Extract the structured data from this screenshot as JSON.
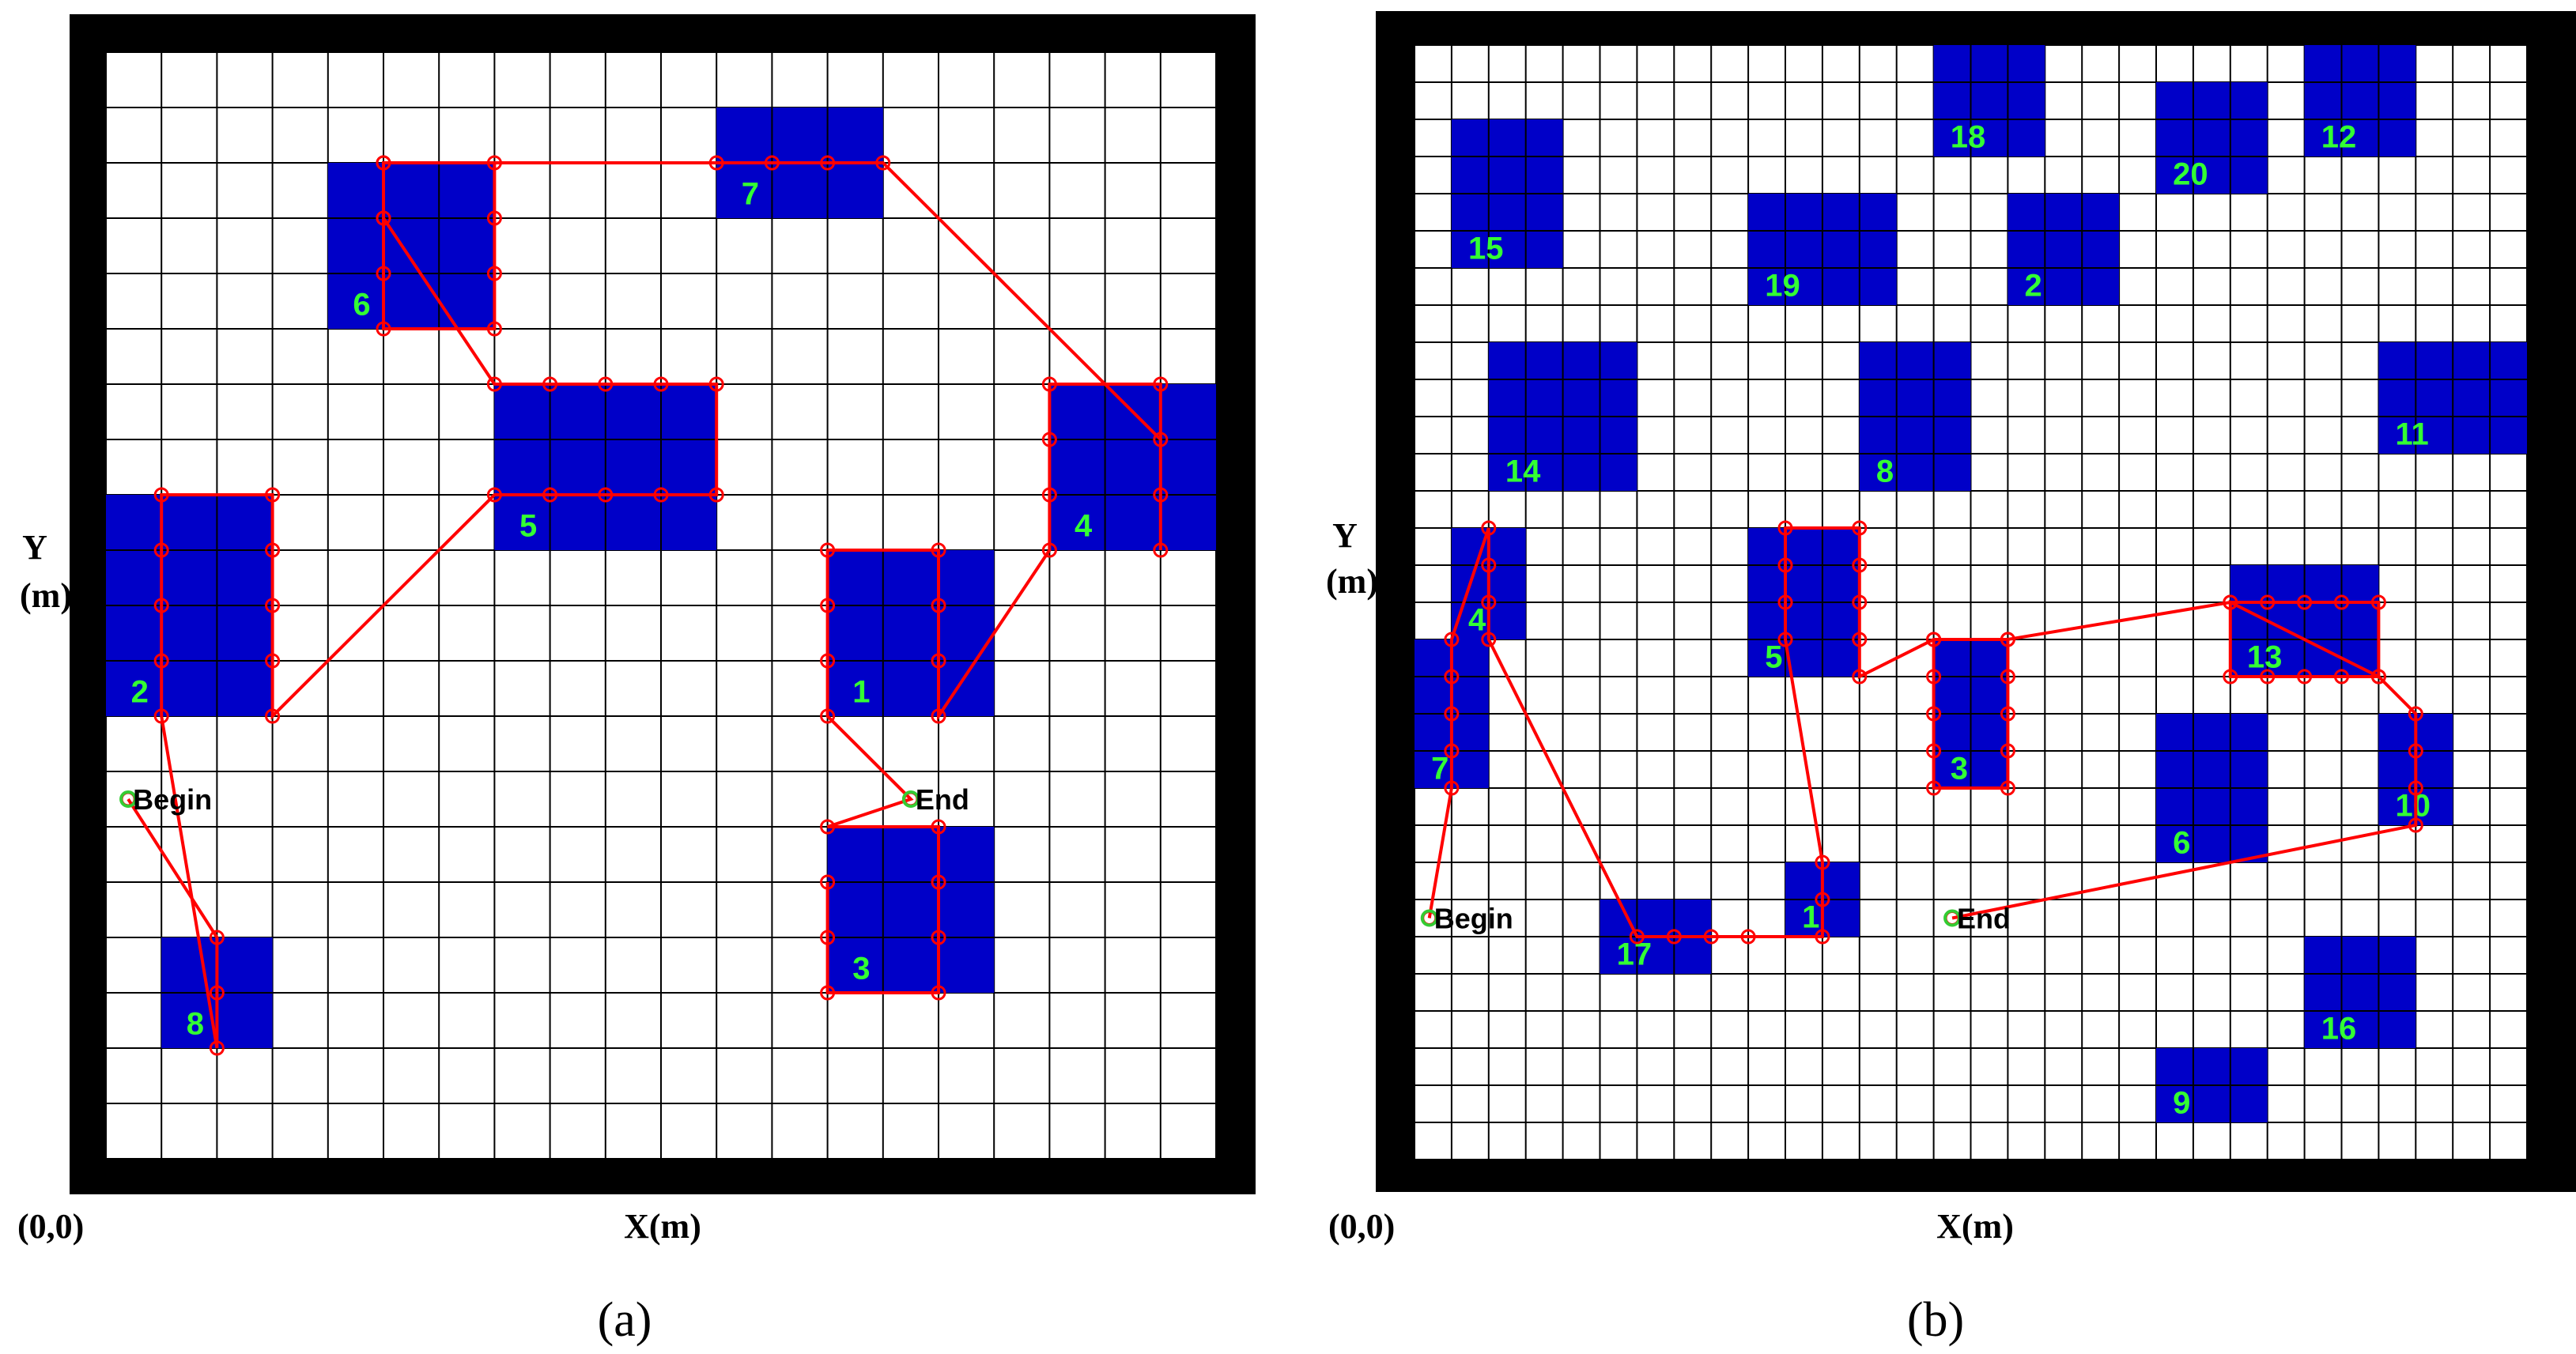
{
  "panels": [
    {
      "id": "a",
      "caption": "(a)",
      "x_label": "X(m)",
      "y_label_line1": "Y",
      "y_label_line2": "(m)",
      "origin_label": "(0,0)",
      "grid_cols": 20,
      "grid_rows": 20,
      "obstacles": [
        {
          "label": "1",
          "x": 13,
          "y": 8,
          "w": 3,
          "h": 3
        },
        {
          "label": "2",
          "x": 0,
          "y": 8,
          "w": 3,
          "h": 4
        },
        {
          "label": "3",
          "x": 13,
          "y": 3,
          "w": 3,
          "h": 3
        },
        {
          "label": "4",
          "x": 17,
          "y": 11,
          "w": 3,
          "h": 3
        },
        {
          "label": "5",
          "x": 7,
          "y": 11,
          "w": 4,
          "h": 3
        },
        {
          "label": "6",
          "x": 4,
          "y": 15,
          "w": 3,
          "h": 3
        },
        {
          "label": "7",
          "x": 11,
          "y": 17,
          "w": 3,
          "h": 2
        },
        {
          "label": "8",
          "x": 1,
          "y": 2,
          "w": 2,
          "h": 2
        }
      ],
      "markers": [
        {
          "label": "Begin",
          "x": 0.4,
          "y": 6.5
        },
        {
          "label": "End",
          "x": 14.5,
          "y": 6.5
        }
      ],
      "path": [
        [
          0.4,
          6.5
        ],
        [
          2,
          4
        ],
        [
          2,
          3
        ],
        [
          2,
          2
        ],
        [
          1,
          8
        ],
        [
          1,
          9
        ],
        [
          1,
          10
        ],
        [
          1,
          11
        ],
        [
          1,
          12
        ],
        [
          3,
          12
        ],
        [
          3,
          11
        ],
        [
          3,
          10
        ],
        [
          3,
          9
        ],
        [
          3,
          8
        ],
        [
          7,
          12
        ],
        [
          8,
          12
        ],
        [
          9,
          12
        ],
        [
          10,
          12
        ],
        [
          11,
          12
        ],
        [
          11,
          14
        ],
        [
          10,
          14
        ],
        [
          9,
          14
        ],
        [
          8,
          14
        ],
        [
          7,
          14
        ],
        [
          5,
          17
        ],
        [
          5,
          18
        ],
        [
          7,
          18
        ],
        [
          7,
          17
        ],
        [
          7,
          16
        ],
        [
          7,
          15
        ],
        [
          5,
          15
        ],
        [
          5,
          16
        ],
        [
          5,
          17
        ],
        [
          5,
          18
        ],
        [
          11,
          18
        ],
        [
          12,
          18
        ],
        [
          13,
          18
        ],
        [
          14,
          18
        ],
        [
          19,
          13
        ],
        [
          19,
          12
        ],
        [
          19,
          11
        ],
        [
          19,
          14
        ],
        [
          17,
          14
        ],
        [
          17,
          13
        ],
        [
          17,
          12
        ],
        [
          17,
          11
        ],
        [
          15,
          8
        ],
        [
          15,
          9
        ],
        [
          15,
          10
        ],
        [
          15,
          11
        ],
        [
          13,
          11
        ],
        [
          13,
          10
        ],
        [
          13,
          9
        ],
        [
          13,
          8
        ],
        [
          14.5,
          6.5
        ],
        [
          13,
          6
        ],
        [
          15,
          6
        ],
        [
          15,
          5
        ],
        [
          15,
          4
        ],
        [
          15,
          3
        ],
        [
          13,
          3
        ],
        [
          13,
          4
        ],
        [
          13,
          5
        ]
      ]
    },
    {
      "id": "b",
      "caption": "(b)",
      "x_label": "X(m)",
      "y_label_line1": "Y",
      "y_label_line2": "(m)",
      "origin_label": "(0,0)",
      "grid_cols": 30,
      "grid_rows": 30,
      "obstacles": [
        {
          "label": "1",
          "x": 10,
          "y": 6,
          "w": 2,
          "h": 2
        },
        {
          "label": "2",
          "x": 16,
          "y": 23,
          "w": 3,
          "h": 3
        },
        {
          "label": "3",
          "x": 14,
          "y": 10,
          "w": 2,
          "h": 4
        },
        {
          "label": "4",
          "x": 1,
          "y": 14,
          "w": 2,
          "h": 3
        },
        {
          "label": "5",
          "x": 9,
          "y": 13,
          "w": 3,
          "h": 4
        },
        {
          "label": "6",
          "x": 20,
          "y": 8,
          "w": 3,
          "h": 4
        },
        {
          "label": "7",
          "x": 0,
          "y": 10,
          "w": 2,
          "h": 4
        },
        {
          "label": "8",
          "x": 12,
          "y": 18,
          "w": 3,
          "h": 4
        },
        {
          "label": "9",
          "x": 20,
          "y": 1,
          "w": 3,
          "h": 2
        },
        {
          "label": "10",
          "x": 26,
          "y": 9,
          "w": 2,
          "h": 3
        },
        {
          "label": "11",
          "x": 26,
          "y": 19,
          "w": 4,
          "h": 3
        },
        {
          "label": "12",
          "x": 24,
          "y": 27,
          "w": 3,
          "h": 3
        },
        {
          "label": "13",
          "x": 22,
          "y": 13,
          "w": 4,
          "h": 3
        },
        {
          "label": "14",
          "x": 2,
          "y": 18,
          "w": 4,
          "h": 4
        },
        {
          "label": "15",
          "x": 1,
          "y": 24,
          "w": 3,
          "h": 4
        },
        {
          "label": "16",
          "x": 24,
          "y": 3,
          "w": 3,
          "h": 3
        },
        {
          "label": "17",
          "x": 5,
          "y": 5,
          "w": 3,
          "h": 2
        },
        {
          "label": "18",
          "x": 14,
          "y": 27,
          "w": 3,
          "h": 3
        },
        {
          "label": "19",
          "x": 9,
          "y": 23,
          "w": 4,
          "h": 3
        },
        {
          "label": "20",
          "x": 20,
          "y": 26,
          "w": 3,
          "h": 3
        }
      ],
      "markers": [
        {
          "label": "Begin",
          "x": 0.4,
          "y": 6.5
        },
        {
          "label": "End",
          "x": 14.5,
          "y": 6.5
        }
      ],
      "path": [
        [
          0.4,
          6.5
        ],
        [
          1,
          10
        ],
        [
          1,
          11
        ],
        [
          1,
          12
        ],
        [
          1,
          13
        ],
        [
          1,
          14
        ],
        [
          2,
          17
        ],
        [
          2,
          16
        ],
        [
          2,
          15
        ],
        [
          2,
          14
        ],
        [
          6,
          6
        ],
        [
          7,
          6
        ],
        [
          8,
          6
        ],
        [
          9,
          6
        ],
        [
          11,
          6
        ],
        [
          11,
          7
        ],
        [
          11,
          8
        ],
        [
          10,
          14
        ],
        [
          10,
          15
        ],
        [
          10,
          16
        ],
        [
          10,
          17
        ],
        [
          12,
          17
        ],
        [
          12,
          16
        ],
        [
          12,
          15
        ],
        [
          12,
          14
        ],
        [
          12,
          13
        ],
        [
          14,
          14
        ],
        [
          16,
          14
        ],
        [
          22,
          15
        ],
        [
          23,
          15
        ],
        [
          24,
          15
        ],
        [
          25,
          15
        ],
        [
          26,
          15
        ],
        [
          26,
          13
        ],
        [
          25,
          13
        ],
        [
          24,
          13
        ],
        [
          23,
          13
        ],
        [
          22,
          13
        ],
        [
          22,
          15
        ],
        [
          26,
          13
        ],
        [
          27,
          12
        ],
        [
          27,
          11
        ],
        [
          27,
          10
        ],
        [
          27,
          9
        ],
        [
          14.5,
          6.5
        ]
      ],
      "path_extra": [
        [
          [
            14,
            14
          ],
          [
            14,
            13
          ],
          [
            14,
            12
          ],
          [
            14,
            11
          ],
          [
            14,
            10
          ],
          [
            16,
            10
          ],
          [
            16,
            11
          ],
          [
            16,
            12
          ],
          [
            16,
            13
          ],
          [
            16,
            14
          ]
        ]
      ]
    }
  ]
}
